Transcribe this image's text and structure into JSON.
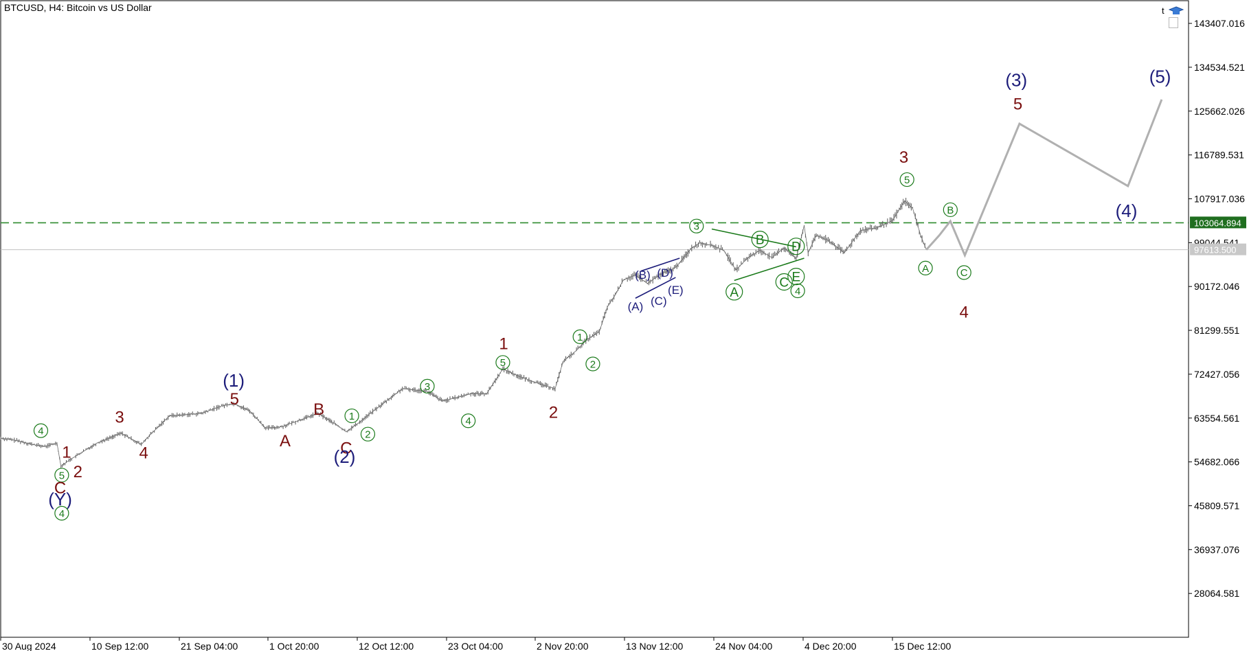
{
  "header": {
    "title": "BTCUSD, H4:  Bitcoin vs US Dollar",
    "corner_letter": "t"
  },
  "chart_data": {
    "type": "line",
    "symbol": "BTCUSD",
    "timeframe": "H4",
    "description": "Bitcoin vs US Dollar",
    "ylim": [
      19200,
      148000
    ],
    "price_ticks": [
      "143407.016",
      "134534.521",
      "125662.026",
      "116789.531",
      "107917.036",
      "99044.541",
      "90172.046",
      "81299.551",
      "72427.056",
      "63554.561",
      "54682.066",
      "45809.571",
      "36937.076",
      "28064.581"
    ],
    "time_ticks": [
      "30 Aug 2024",
      "10 Sep 12:00",
      "21 Sep 04:00",
      "1 Oct 20:00",
      "12 Oct 12:00",
      "23 Oct 04:00",
      "2 Nov 20:00",
      "13 Nov 12:00",
      "24 Nov 04:00",
      "4 Dec 20:00",
      "15 Dec 12:00"
    ],
    "price_series": {
      "x": [
        0,
        20,
        40,
        55,
        70,
        75,
        85,
        100,
        120,
        150,
        175,
        185,
        210,
        250,
        275,
        290,
        310,
        330,
        350,
        370,
        395,
        415,
        430,
        445,
        460,
        480,
        500,
        530,
        550,
        570,
        585,
        605,
        625,
        645,
        670,
        690,
        700,
        715,
        730,
        745,
        755,
        765,
        775,
        790,
        805,
        820,
        840,
        860,
        870,
        885,
        900,
        915,
        930,
        945,
        960,
        975,
        990,
        1000,
        1005,
        1015,
        1030,
        1050,
        1070,
        1090,
        1110,
        1125,
        1135,
        1145,
        1152
      ],
      "y": [
        59500,
        59000,
        58200,
        57800,
        58500,
        53800,
        55000,
        56500,
        58500,
        60500,
        58200,
        60000,
        64000,
        64500,
        66000,
        66500,
        65000,
        61500,
        61800,
        63000,
        64500,
        62500,
        60800,
        62500,
        64500,
        67000,
        69500,
        69000,
        67000,
        67800,
        68500,
        68500,
        73500,
        72000,
        70500,
        69500,
        75000,
        77000,
        79500,
        81000,
        86000,
        88500,
        91500,
        92500,
        90800,
        92500,
        94000,
        98000,
        99000,
        98500,
        97500,
        93500,
        96000,
        97500,
        96000,
        98000,
        95800,
        102500,
        97000,
        100500,
        99500,
        97000,
        101500,
        102000,
        103500,
        107500,
        106000,
        100500,
        97600
      ]
    },
    "current_price": {
      "label": "97613.500",
      "value": 97613.5
    },
    "level_line": {
      "label": "103064.894",
      "value": 103064.894,
      "color": "#2e8b2e"
    },
    "projection": {
      "x": [
        1152,
        1168,
        1182,
        1200,
        1268,
        1403,
        1445
      ],
      "y": [
        97600,
        100500,
        103400,
        96500,
        123100,
        110500,
        128000
      ]
    },
    "wave_labels": [
      {
        "text": "4",
        "x": 50,
        "y": 61000,
        "style": "circle"
      },
      {
        "text": "1",
        "x": 82,
        "y": 56700,
        "style": "maroon"
      },
      {
        "text": "2",
        "x": 96,
        "y": 52800,
        "style": "maroon"
      },
      {
        "text": "5",
        "x": 76,
        "y": 52000,
        "style": "circle"
      },
      {
        "text": "C",
        "x": 74,
        "y": 49500,
        "style": "maroon"
      },
      {
        "text": "(Y)",
        "x": 74,
        "y": 47200,
        "style": "navy"
      },
      {
        "text": "4",
        "x": 76,
        "y": 44300,
        "style": "circle"
      },
      {
        "text": "3",
        "x": 148,
        "y": 63800,
        "style": "maroon"
      },
      {
        "text": "4",
        "x": 178,
        "y": 56600,
        "style": "maroon"
      },
      {
        "text": "(1)",
        "x": 290,
        "y": 71200,
        "style": "navy"
      },
      {
        "text": "5",
        "x": 291,
        "y": 67500,
        "style": "maroon"
      },
      {
        "text": "A",
        "x": 354,
        "y": 59000,
        "style": "maroon"
      },
      {
        "text": "B",
        "x": 396,
        "y": 65400,
        "style": "maroon"
      },
      {
        "text": "1",
        "x": 437,
        "y": 64000,
        "style": "circle"
      },
      {
        "text": "2",
        "x": 457,
        "y": 60300,
        "style": "circle"
      },
      {
        "text": "C",
        "x": 430,
        "y": 57600,
        "style": "maroon"
      },
      {
        "text": "(2)",
        "x": 428,
        "y": 55800,
        "style": "navy"
      },
      {
        "text": "3",
        "x": 531,
        "y": 70000,
        "style": "circle"
      },
      {
        "text": "4",
        "x": 582,
        "y": 63000,
        "style": "circle"
      },
      {
        "text": "1",
        "x": 626,
        "y": 78700,
        "style": "maroon"
      },
      {
        "text": "5",
        "x": 625,
        "y": 74800,
        "style": "circle"
      },
      {
        "text": "2",
        "x": 688,
        "y": 64800,
        "style": "maroon"
      },
      {
        "text": "1",
        "x": 721,
        "y": 80000,
        "style": "circle"
      },
      {
        "text": "2",
        "x": 737,
        "y": 74500,
        "style": "circle"
      },
      {
        "text": "3",
        "x": 866,
        "y": 102400,
        "style": "circle"
      },
      {
        "text": "B",
        "x": 945,
        "y": 99700,
        "style": "circle-large"
      },
      {
        "text": "D",
        "x": 990,
        "y": 98300,
        "style": "circle-large"
      },
      {
        "text": "A",
        "x": 913,
        "y": 89100,
        "style": "circle-large"
      },
      {
        "text": "C",
        "x": 975,
        "y": 91100,
        "style": "circle-large"
      },
      {
        "text": "E",
        "x": 990,
        "y": 92200,
        "style": "circle-large"
      },
      {
        "text": "4",
        "x": 992,
        "y": 89300,
        "style": "circle"
      },
      {
        "text": "(B)",
        "x": 799,
        "y": 92600,
        "style": "navy-small"
      },
      {
        "text": "(D)",
        "x": 827,
        "y": 93000,
        "style": "navy-small"
      },
      {
        "text": "(E)",
        "x": 840,
        "y": 89500,
        "style": "navy-small"
      },
      {
        "text": "(C)",
        "x": 819,
        "y": 87300,
        "style": "navy-small"
      },
      {
        "text": "(A)",
        "x": 790,
        "y": 86200,
        "style": "navy-small"
      },
      {
        "text": "3",
        "x": 1124,
        "y": 116400,
        "style": "maroon"
      },
      {
        "text": "5",
        "x": 1128,
        "y": 111800,
        "style": "circle"
      },
      {
        "text": "B",
        "x": 1182,
        "y": 105700,
        "style": "circle"
      },
      {
        "text": "A",
        "x": 1151,
        "y": 93900,
        "style": "circle"
      },
      {
        "text": "C",
        "x": 1199,
        "y": 93000,
        "style": "circle"
      },
      {
        "text": "4",
        "x": 1199,
        "y": 85100,
        "style": "maroon"
      },
      {
        "text": "(3)",
        "x": 1264,
        "y": 132000,
        "style": "navy"
      },
      {
        "text": "5",
        "x": 1266,
        "y": 127200,
        "style": "maroon"
      },
      {
        "text": "(4)",
        "x": 1401,
        "y": 105500,
        "style": "navy"
      },
      {
        "text": "(5)",
        "x": 1443,
        "y": 132700,
        "style": "navy"
      }
    ],
    "trend_lines": [
      {
        "x1": 885,
        "y1": 101800,
        "x2": 990,
        "y2": 98200,
        "color": "#1a7a1a"
      },
      {
        "x1": 913,
        "y1": 91400,
        "x2": 1000,
        "y2": 95900,
        "color": "#1a7a1a"
      },
      {
        "x1": 790,
        "y1": 87800,
        "x2": 840,
        "y2": 92000,
        "color": "#1c1c7a"
      },
      {
        "x1": 797,
        "y1": 93300,
        "x2": 845,
        "y2": 95900,
        "color": "#1c1c7a"
      }
    ],
    "colors": {
      "price": "#555555",
      "projection": "#b0b0b0",
      "maroon": "#7a0e0e",
      "navy": "#1c1c7a",
      "green": "#1a7a1a"
    }
  }
}
